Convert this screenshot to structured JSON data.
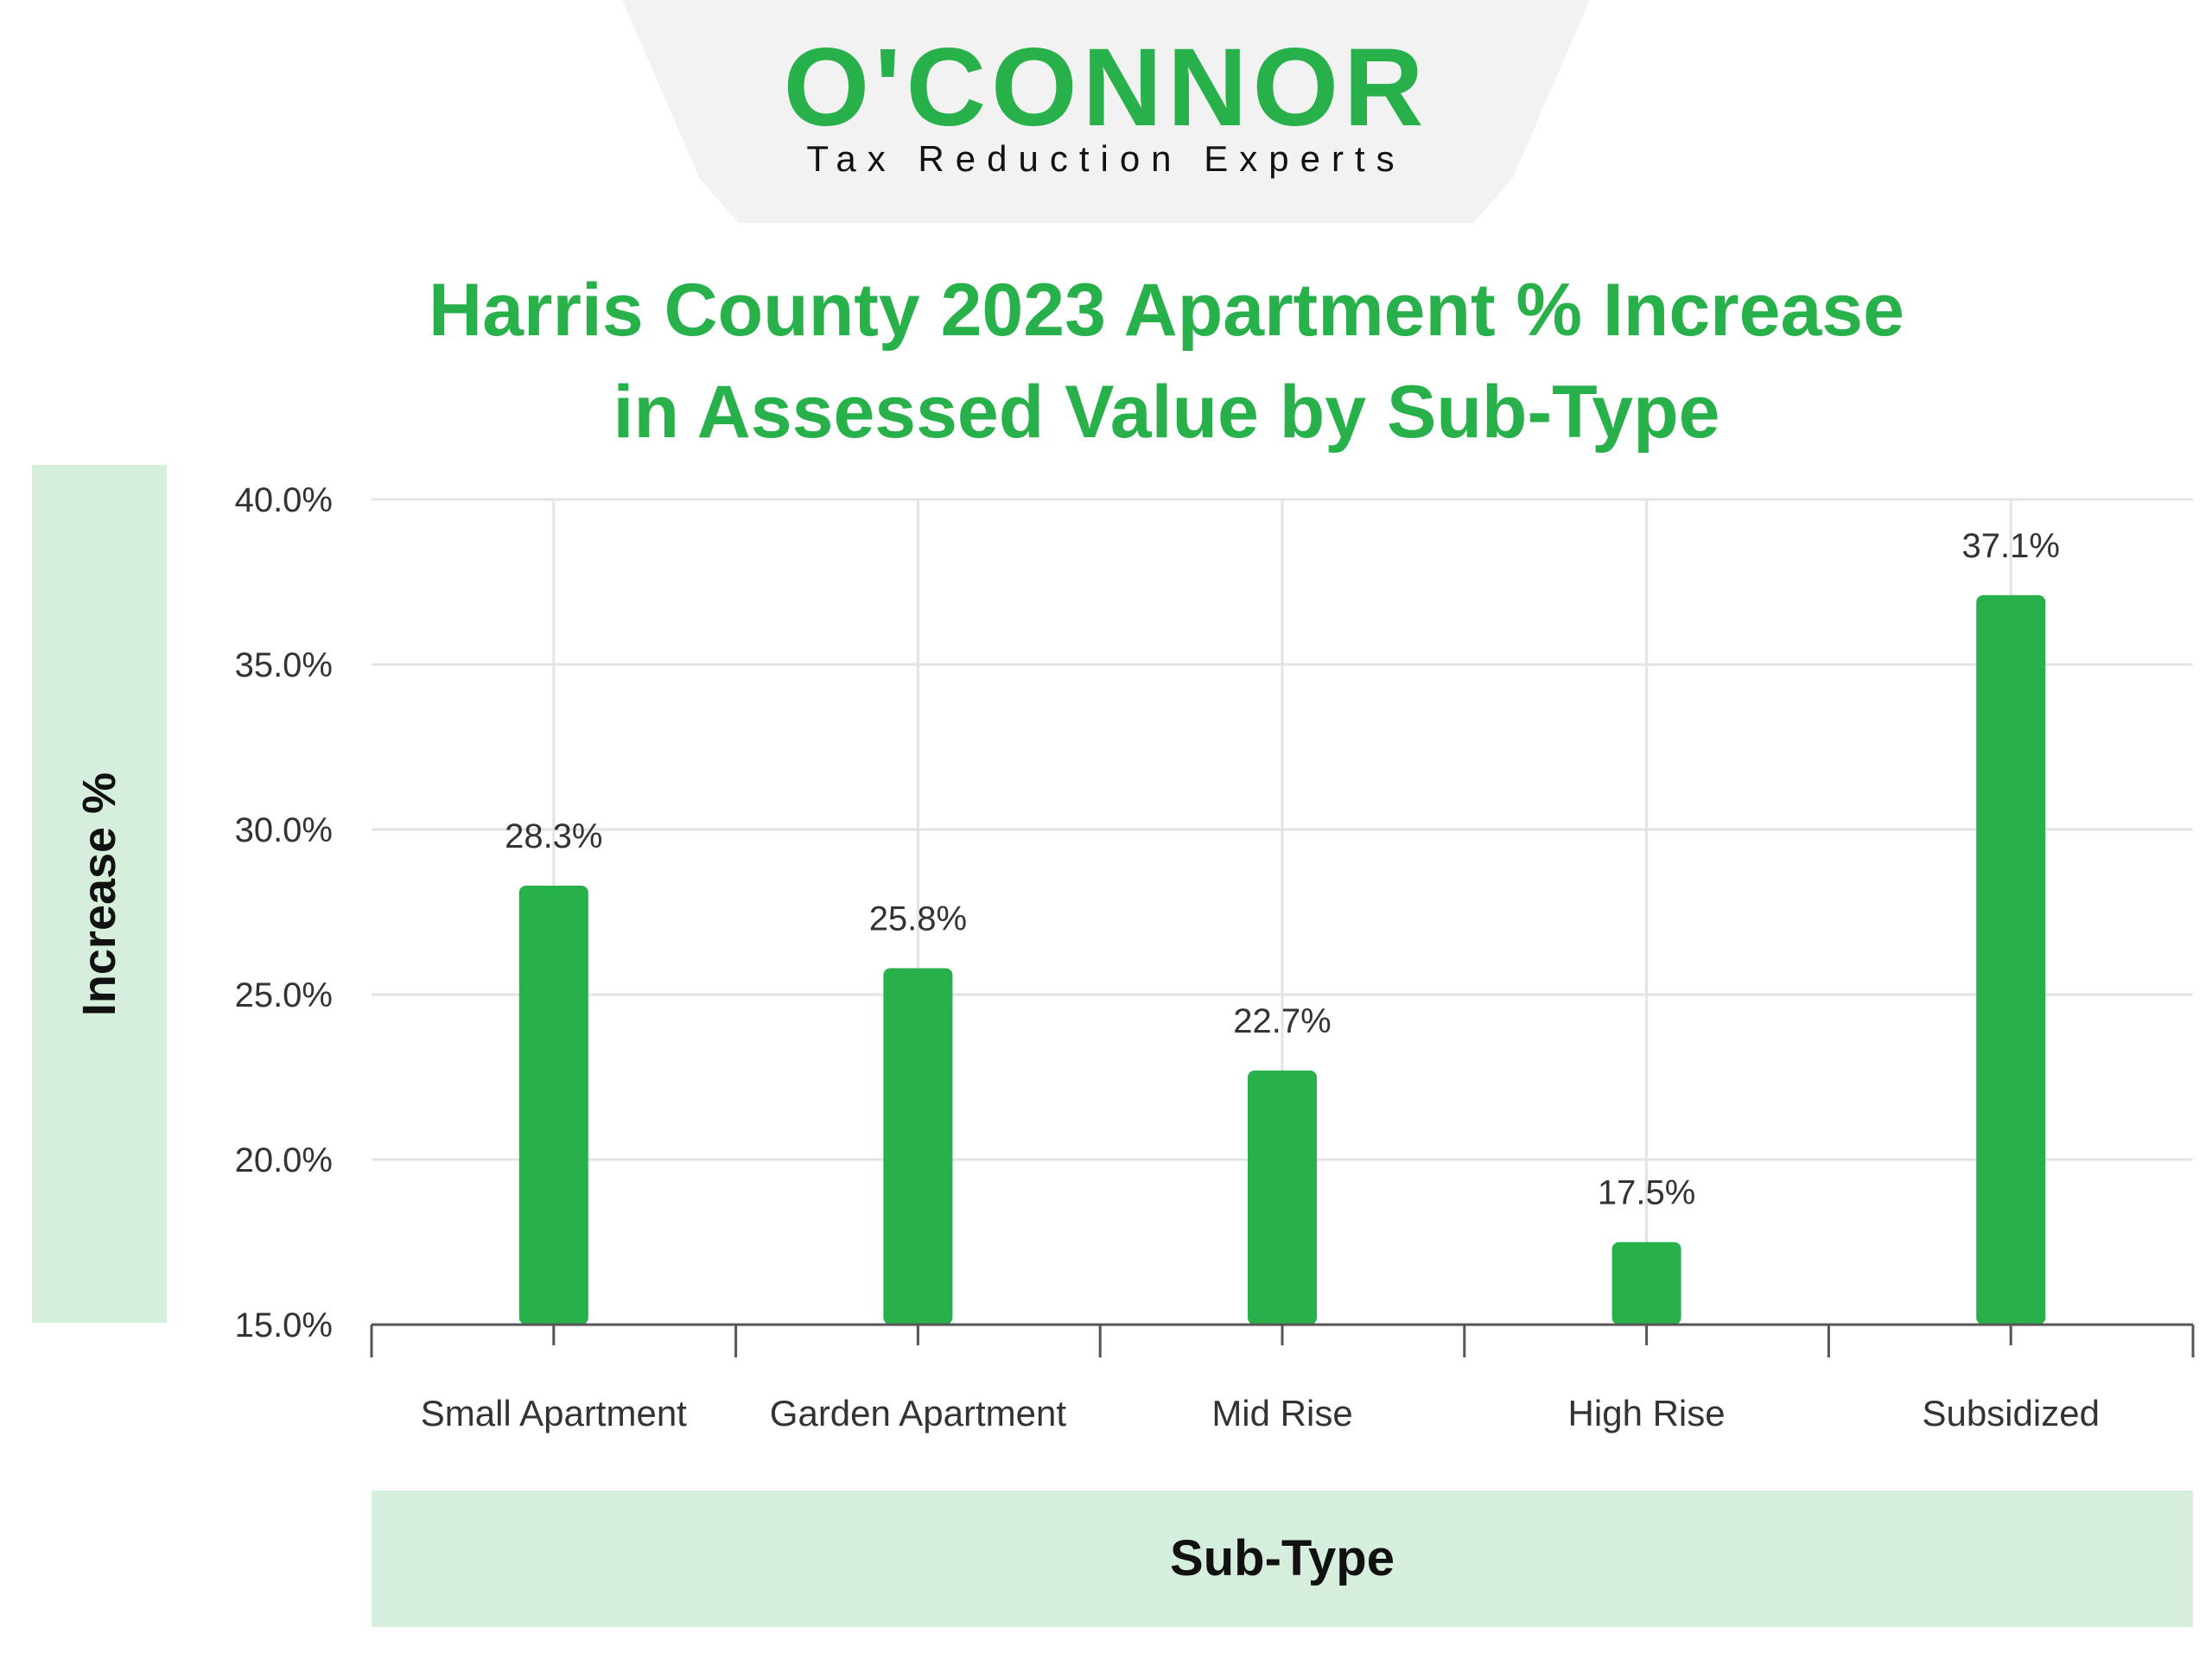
{
  "logo": {
    "wordmark": "O'CONNOR",
    "tagline": "Tax Reduction Experts"
  },
  "colors": {
    "accent": "#28b04b",
    "label_panel": "#d6efdc",
    "grid": "#e3e3e3",
    "axis": "#555555"
  },
  "chart_data": {
    "type": "bar",
    "title": "Harris County 2023 Apartment % Increase in Assessed Value by Sub-Type",
    "title_lines": [
      "Harris County 2023 Apartment % Increase",
      "in Assessed Value by Sub-Type"
    ],
    "xlabel": "Sub-Type",
    "ylabel": "Increase %",
    "categories": [
      "Small Apartment",
      "Garden Apartment",
      "Mid Rise",
      "High Rise",
      "Subsidized"
    ],
    "values": [
      28.3,
      25.8,
      22.7,
      17.5,
      37.1
    ],
    "value_labels": [
      "28.3%",
      "25.8%",
      "22.7%",
      "17.5%",
      "37.1%"
    ],
    "ylim": [
      15,
      40
    ],
    "yticks": [
      15,
      20,
      25,
      30,
      35,
      40
    ],
    "ytick_labels": [
      "15.0%",
      "20.0%",
      "25.0%",
      "30.0%",
      "35.0%",
      "40.0%"
    ],
    "grid": true,
    "bar_color": "#28b04b"
  }
}
